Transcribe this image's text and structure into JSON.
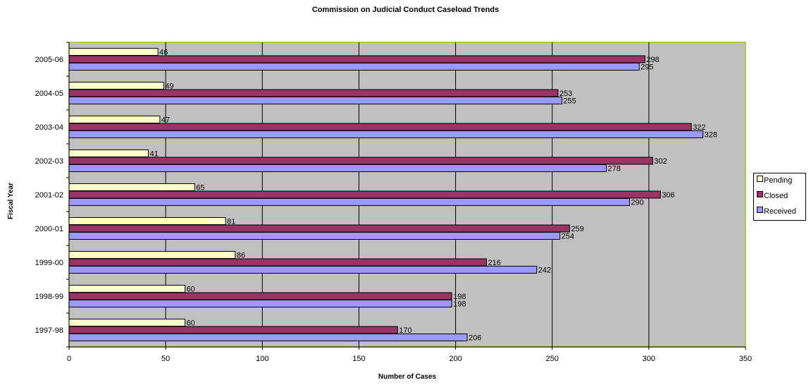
{
  "chart_data": {
    "type": "bar",
    "orientation": "horizontal",
    "title": "Commission on Judicial Conduct Caseload Trends",
    "xlabel": "Number of Cases",
    "ylabel": "Fiscal Year",
    "xlim": [
      0,
      350
    ],
    "xticks": [
      0,
      50,
      100,
      150,
      200,
      250,
      300,
      350
    ],
    "grid": "vertical",
    "legend_position": "right",
    "categories": [
      "2005-06",
      "2004-05",
      "2003-04",
      "2002-03",
      "2001-02",
      "2000-01",
      "1999-00",
      "1998-99",
      "1997-98"
    ],
    "series": [
      {
        "name": "Pending",
        "color": "#ffffcc",
        "values": [
          46,
          49,
          47,
          41,
          65,
          81,
          86,
          60,
          60
        ]
      },
      {
        "name": "Closed",
        "color": "#993366",
        "values": [
          298,
          253,
          322,
          302,
          306,
          259,
          216,
          198,
          170
        ]
      },
      {
        "name": "Received",
        "color": "#9999ff",
        "values": [
          295,
          255,
          328,
          278,
          290,
          254,
          242,
          198,
          206
        ]
      }
    ],
    "plot_background": "#c0c0c0",
    "plot_border_color": "#99cc00"
  }
}
